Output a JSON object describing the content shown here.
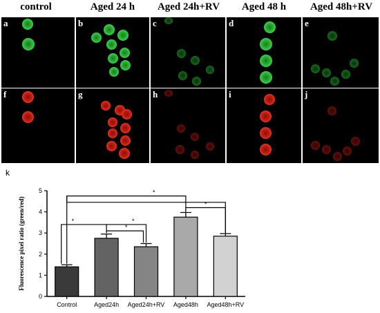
{
  "panels": {
    "headers": [
      "control",
      "Aged 24 h",
      "Aged 24h+RV",
      "Aged 48 h",
      "Aged 48h+RV"
    ],
    "letters_top": [
      "a",
      "b",
      "c",
      "d",
      "e"
    ],
    "letters_bottom": [
      "f",
      "g",
      "h",
      "i",
      "j"
    ]
  },
  "chart_label": "k",
  "chart_data": {
    "type": "bar",
    "categories": [
      "Control",
      "Aged24h",
      "Aged24h+RV",
      "Aged48h",
      "Aged48h+RV"
    ],
    "values": [
      1.4,
      2.75,
      2.35,
      3.75,
      2.85
    ],
    "errors": [
      0.1,
      0.2,
      0.15,
      0.22,
      0.12
    ],
    "bar_colors": [
      "#3a3a3a",
      "#636363",
      "#858585",
      "#a9a9a9",
      "#d2d2d2"
    ],
    "ylabel": "Fluorescence pixel ratio (green/red)",
    "ylim": [
      0,
      5
    ],
    "yticks": [
      0,
      1,
      2,
      3,
      4,
      5
    ],
    "significance": [
      {
        "from": 0,
        "to": 3,
        "label": "*"
      },
      {
        "from": 0,
        "to": 1,
        "label": "*"
      },
      {
        "from": 1,
        "to": 2,
        "label": "*"
      },
      {
        "from": 3,
        "to": 4,
        "label": "*"
      },
      {
        "from": 0,
        "to": 2,
        "label": "*"
      }
    ],
    "grid": false
  }
}
